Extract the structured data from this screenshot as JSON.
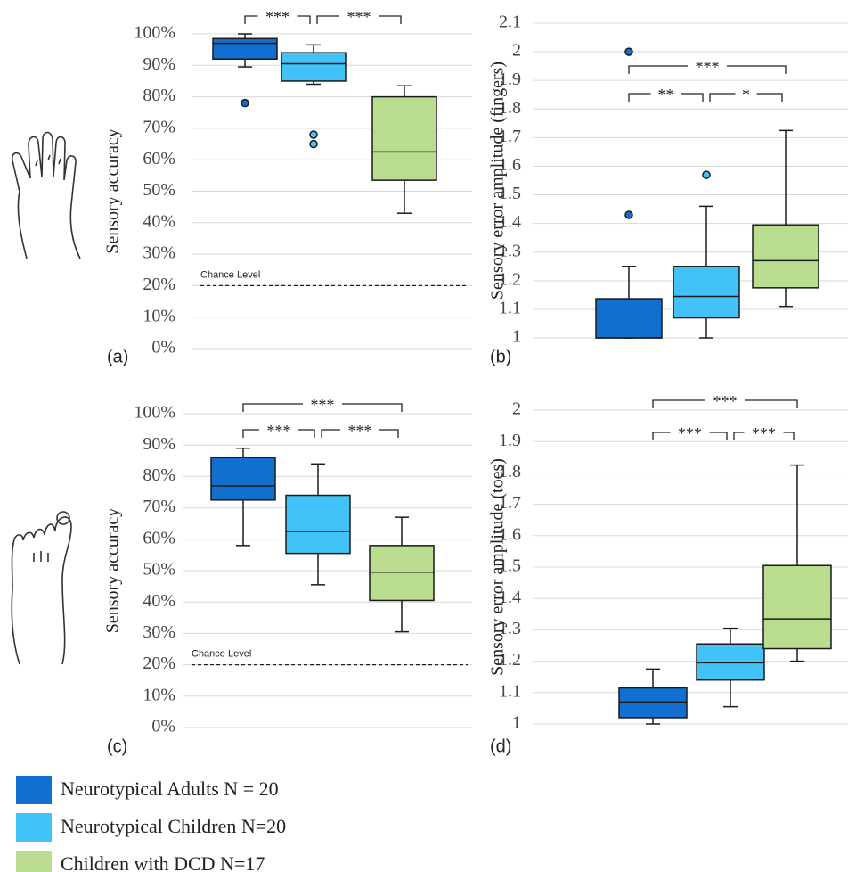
{
  "chart_data": [
    {
      "type": "box",
      "panel_label": "(a)",
      "y_label": "Sensory accuracy",
      "ylim": [
        0,
        100
      ],
      "yticks": [
        {
          "value": 0,
          "label": "0%"
        },
        {
          "value": 10,
          "label": "10%"
        },
        {
          "value": 20,
          "label": "20%"
        },
        {
          "value": 30,
          "label": "30%"
        },
        {
          "value": 40,
          "label": "40%"
        },
        {
          "value": 50,
          "label": "50%"
        },
        {
          "value": 60,
          "label": "60%"
        },
        {
          "value": 70,
          "label": "70%"
        },
        {
          "value": 80,
          "label": "80%"
        },
        {
          "value": 90,
          "label": "90%"
        },
        {
          "value": 100,
          "label": "100%"
        }
      ],
      "grid": true,
      "reference_line": {
        "label": "Chance Level",
        "value": 20
      },
      "boxes": [
        {
          "min": 89.5,
          "q1": 92,
          "median": 97,
          "q3": 98.5,
          "max": 100,
          "outliers": [
            78
          ]
        },
        {
          "min": 84,
          "q1": 85,
          "median": 90.5,
          "q3": 94,
          "max": 96.5,
          "outliers": [
            68,
            65
          ]
        },
        {
          "min": 43,
          "q1": 53.5,
          "median": 62.5,
          "q3": 80,
          "max": 83.5,
          "outliers": []
        }
      ],
      "brackets": [
        {
          "from": 0,
          "to": 1,
          "label": "***"
        },
        {
          "from": 1,
          "to": 2,
          "label": "***"
        }
      ]
    },
    {
      "type": "box",
      "panel_label": "(b)",
      "y_label": "Sensory error amplitude (fingers)",
      "ylim": [
        1,
        2.1
      ],
      "yticks": [
        1,
        1.1,
        1.2,
        1.3,
        1.4,
        1.5,
        1.6,
        1.7,
        1.8,
        1.9,
        2,
        2.1
      ],
      "grid": true,
      "boxes": [
        {
          "min": 1,
          "q1": 1,
          "median": 1,
          "q3": 1.137,
          "max": 1.25,
          "outliers": [
            1.43,
            2.0
          ]
        },
        {
          "min": 1,
          "q1": 1.07,
          "median": 1.145,
          "q3": 1.25,
          "max": 1.46,
          "outliers": [
            1.57
          ]
        },
        {
          "min": 1.11,
          "q1": 1.175,
          "median": 1.27,
          "q3": 1.395,
          "max": 1.725,
          "outliers": []
        }
      ],
      "brackets": [
        {
          "from": 0,
          "to": 2,
          "label": "***"
        },
        {
          "from": 0,
          "to": 1,
          "label": "**"
        },
        {
          "from": 1,
          "to": 2,
          "label": "*"
        }
      ]
    },
    {
      "type": "box",
      "panel_label": "(c)",
      "y_label": "Sensory accuracy",
      "ylim": [
        0,
        100
      ],
      "yticks": [
        {
          "value": 0,
          "label": "0%"
        },
        {
          "value": 10,
          "label": "10%"
        },
        {
          "value": 20,
          "label": "20%"
        },
        {
          "value": 30,
          "label": "30%"
        },
        {
          "value": 40,
          "label": "40%"
        },
        {
          "value": 50,
          "label": "50%"
        },
        {
          "value": 60,
          "label": "60%"
        },
        {
          "value": 70,
          "label": "70%"
        },
        {
          "value": 80,
          "label": "80%"
        },
        {
          "value": 90,
          "label": "90%"
        },
        {
          "value": 100,
          "label": "100%"
        }
      ],
      "grid": true,
      "reference_line": {
        "label": "Chance Level",
        "value": 20
      },
      "boxes": [
        {
          "min": 58,
          "q1": 72.5,
          "median": 77,
          "q3": 86,
          "max": 89,
          "outliers": []
        },
        {
          "min": 45.5,
          "q1": 55.5,
          "median": 62.5,
          "q3": 74,
          "max": 84,
          "outliers": []
        },
        {
          "min": 30.5,
          "q1": 40.5,
          "median": 49.5,
          "q3": 58,
          "max": 67,
          "outliers": []
        }
      ],
      "brackets": [
        {
          "from": 0,
          "to": 2,
          "label": "***"
        },
        {
          "from": 0,
          "to": 1,
          "label": "***"
        },
        {
          "from": 1,
          "to": 2,
          "label": "***"
        }
      ]
    },
    {
      "type": "box",
      "panel_label": "(d)",
      "y_label": "Sensory error amplitude (toes)",
      "ylim": [
        1,
        2
      ],
      "yticks": [
        1,
        1.1,
        1.2,
        1.3,
        1.4,
        1.5,
        1.6,
        1.7,
        1.8,
        1.9,
        2
      ],
      "grid": true,
      "boxes": [
        {
          "min": 1,
          "q1": 1.02,
          "median": 1.07,
          "q3": 1.115,
          "max": 1.175,
          "outliers": []
        },
        {
          "min": 1.055,
          "q1": 1.14,
          "median": 1.195,
          "q3": 1.255,
          "max": 1.305,
          "outliers": []
        },
        {
          "min": 1.2,
          "q1": 1.24,
          "median": 1.335,
          "q3": 1.505,
          "max": 1.825,
          "outliers": []
        }
      ],
      "brackets": [
        {
          "from": 0,
          "to": 2,
          "label": "***"
        },
        {
          "from": 0,
          "to": 1,
          "label": "***"
        },
        {
          "from": 1,
          "to": 2,
          "label": "***"
        }
      ]
    }
  ],
  "legend": [
    {
      "name": "Neurotypical Adults N = 20",
      "color": "#1170cf"
    },
    {
      "name": "Neurotypical Children N=20",
      "color": "#42c3f7"
    },
    {
      "name": "Children with DCD N=17",
      "color": "#b9dc8e"
    }
  ]
}
